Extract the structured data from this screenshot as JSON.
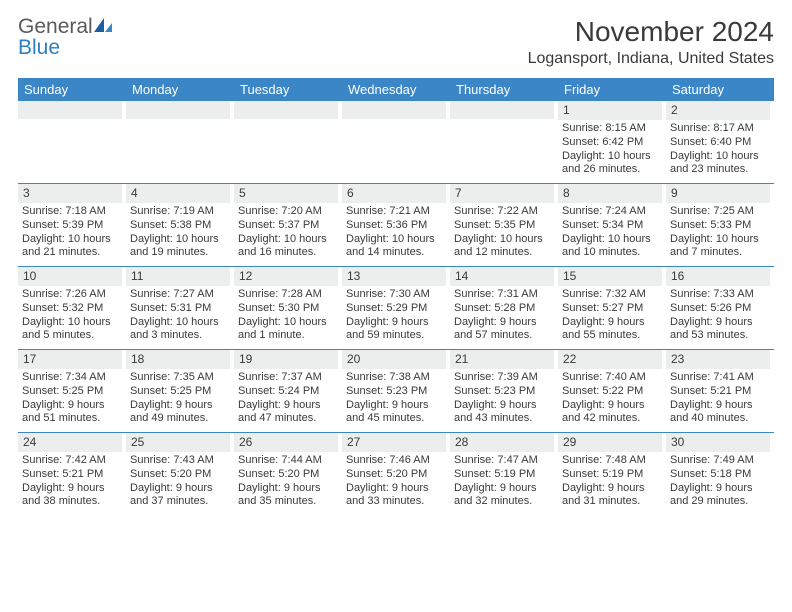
{
  "brand": {
    "word1": "General",
    "word2": "Blue"
  },
  "title": "November 2024",
  "location": "Logansport, Indiana, United States",
  "colors": {
    "header_bg": "#3b86c7",
    "daynum_bg": "#eceeee",
    "text": "#3a3a3a",
    "brand_gray": "#5a5a5a",
    "brand_blue": "#2f7fc2",
    "rule": "#3b86c7"
  },
  "weekdays": [
    "Sunday",
    "Monday",
    "Tuesday",
    "Wednesday",
    "Thursday",
    "Friday",
    "Saturday"
  ],
  "weeks": [
    [
      {
        "n": "",
        "sr": "",
        "ss": "",
        "dl": ""
      },
      {
        "n": "",
        "sr": "",
        "ss": "",
        "dl": ""
      },
      {
        "n": "",
        "sr": "",
        "ss": "",
        "dl": ""
      },
      {
        "n": "",
        "sr": "",
        "ss": "",
        "dl": ""
      },
      {
        "n": "",
        "sr": "",
        "ss": "",
        "dl": ""
      },
      {
        "n": "1",
        "sr": "Sunrise: 8:15 AM",
        "ss": "Sunset: 6:42 PM",
        "dl": "Daylight: 10 hours and 26 minutes."
      },
      {
        "n": "2",
        "sr": "Sunrise: 8:17 AM",
        "ss": "Sunset: 6:40 PM",
        "dl": "Daylight: 10 hours and 23 minutes."
      }
    ],
    [
      {
        "n": "3",
        "sr": "Sunrise: 7:18 AM",
        "ss": "Sunset: 5:39 PM",
        "dl": "Daylight: 10 hours and 21 minutes."
      },
      {
        "n": "4",
        "sr": "Sunrise: 7:19 AM",
        "ss": "Sunset: 5:38 PM",
        "dl": "Daylight: 10 hours and 19 minutes."
      },
      {
        "n": "5",
        "sr": "Sunrise: 7:20 AM",
        "ss": "Sunset: 5:37 PM",
        "dl": "Daylight: 10 hours and 16 minutes."
      },
      {
        "n": "6",
        "sr": "Sunrise: 7:21 AM",
        "ss": "Sunset: 5:36 PM",
        "dl": "Daylight: 10 hours and 14 minutes."
      },
      {
        "n": "7",
        "sr": "Sunrise: 7:22 AM",
        "ss": "Sunset: 5:35 PM",
        "dl": "Daylight: 10 hours and 12 minutes."
      },
      {
        "n": "8",
        "sr": "Sunrise: 7:24 AM",
        "ss": "Sunset: 5:34 PM",
        "dl": "Daylight: 10 hours and 10 minutes."
      },
      {
        "n": "9",
        "sr": "Sunrise: 7:25 AM",
        "ss": "Sunset: 5:33 PM",
        "dl": "Daylight: 10 hours and 7 minutes."
      }
    ],
    [
      {
        "n": "10",
        "sr": "Sunrise: 7:26 AM",
        "ss": "Sunset: 5:32 PM",
        "dl": "Daylight: 10 hours and 5 minutes."
      },
      {
        "n": "11",
        "sr": "Sunrise: 7:27 AM",
        "ss": "Sunset: 5:31 PM",
        "dl": "Daylight: 10 hours and 3 minutes."
      },
      {
        "n": "12",
        "sr": "Sunrise: 7:28 AM",
        "ss": "Sunset: 5:30 PM",
        "dl": "Daylight: 10 hours and 1 minute."
      },
      {
        "n": "13",
        "sr": "Sunrise: 7:30 AM",
        "ss": "Sunset: 5:29 PM",
        "dl": "Daylight: 9 hours and 59 minutes."
      },
      {
        "n": "14",
        "sr": "Sunrise: 7:31 AM",
        "ss": "Sunset: 5:28 PM",
        "dl": "Daylight: 9 hours and 57 minutes."
      },
      {
        "n": "15",
        "sr": "Sunrise: 7:32 AM",
        "ss": "Sunset: 5:27 PM",
        "dl": "Daylight: 9 hours and 55 minutes."
      },
      {
        "n": "16",
        "sr": "Sunrise: 7:33 AM",
        "ss": "Sunset: 5:26 PM",
        "dl": "Daylight: 9 hours and 53 minutes."
      }
    ],
    [
      {
        "n": "17",
        "sr": "Sunrise: 7:34 AM",
        "ss": "Sunset: 5:25 PM",
        "dl": "Daylight: 9 hours and 51 minutes."
      },
      {
        "n": "18",
        "sr": "Sunrise: 7:35 AM",
        "ss": "Sunset: 5:25 PM",
        "dl": "Daylight: 9 hours and 49 minutes."
      },
      {
        "n": "19",
        "sr": "Sunrise: 7:37 AM",
        "ss": "Sunset: 5:24 PM",
        "dl": "Daylight: 9 hours and 47 minutes."
      },
      {
        "n": "20",
        "sr": "Sunrise: 7:38 AM",
        "ss": "Sunset: 5:23 PM",
        "dl": "Daylight: 9 hours and 45 minutes."
      },
      {
        "n": "21",
        "sr": "Sunrise: 7:39 AM",
        "ss": "Sunset: 5:23 PM",
        "dl": "Daylight: 9 hours and 43 minutes."
      },
      {
        "n": "22",
        "sr": "Sunrise: 7:40 AM",
        "ss": "Sunset: 5:22 PM",
        "dl": "Daylight: 9 hours and 42 minutes."
      },
      {
        "n": "23",
        "sr": "Sunrise: 7:41 AM",
        "ss": "Sunset: 5:21 PM",
        "dl": "Daylight: 9 hours and 40 minutes."
      }
    ],
    [
      {
        "n": "24",
        "sr": "Sunrise: 7:42 AM",
        "ss": "Sunset: 5:21 PM",
        "dl": "Daylight: 9 hours and 38 minutes."
      },
      {
        "n": "25",
        "sr": "Sunrise: 7:43 AM",
        "ss": "Sunset: 5:20 PM",
        "dl": "Daylight: 9 hours and 37 minutes."
      },
      {
        "n": "26",
        "sr": "Sunrise: 7:44 AM",
        "ss": "Sunset: 5:20 PM",
        "dl": "Daylight: 9 hours and 35 minutes."
      },
      {
        "n": "27",
        "sr": "Sunrise: 7:46 AM",
        "ss": "Sunset: 5:20 PM",
        "dl": "Daylight: 9 hours and 33 minutes."
      },
      {
        "n": "28",
        "sr": "Sunrise: 7:47 AM",
        "ss": "Sunset: 5:19 PM",
        "dl": "Daylight: 9 hours and 32 minutes."
      },
      {
        "n": "29",
        "sr": "Sunrise: 7:48 AM",
        "ss": "Sunset: 5:19 PM",
        "dl": "Daylight: 9 hours and 31 minutes."
      },
      {
        "n": "30",
        "sr": "Sunrise: 7:49 AM",
        "ss": "Sunset: 5:18 PM",
        "dl": "Daylight: 9 hours and 29 minutes."
      }
    ]
  ]
}
